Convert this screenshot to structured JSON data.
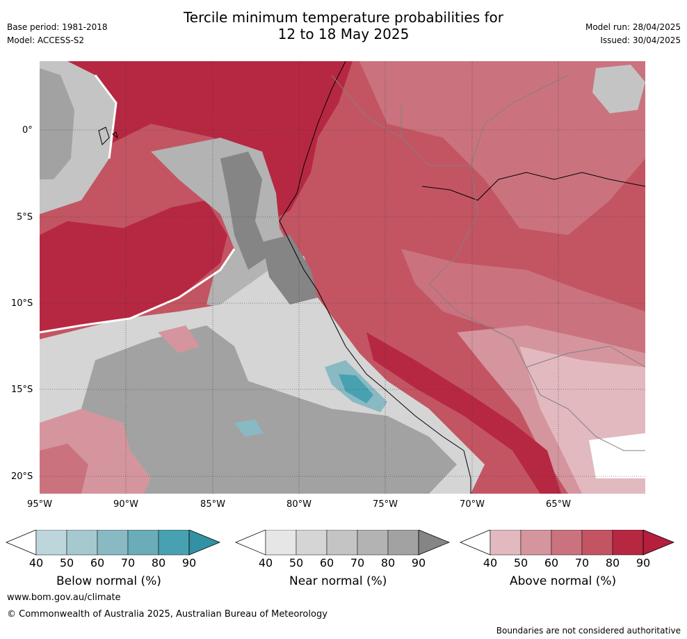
{
  "header": {
    "title_line1": "Tercile minimum temperature probabilities for",
    "title_line2": "12 to 18 May 2025",
    "base_period": "Base period: 1981-2018",
    "model": "Model: ACCESS-S2",
    "model_run": "Model run: 28/04/2025",
    "issued": "Issued: 30/04/2025"
  },
  "axes": {
    "lat_labels": [
      "0°",
      "5°S",
      "10°S",
      "15°S",
      "20°S"
    ],
    "lon_labels": [
      "95°W",
      "90°W",
      "85°W",
      "80°W",
      "75°W",
      "70°W",
      "65°W"
    ],
    "lon_range": [
      -95,
      -60
    ],
    "lat_range": [
      -21,
      4
    ]
  },
  "legends": [
    {
      "title": "Below normal (%)",
      "ticks": [
        "40",
        "50",
        "60",
        "70",
        "80",
        "90"
      ],
      "colors": [
        "#ffffff",
        "#bdd6dc",
        "#a6c8cf",
        "#89b9c3",
        "#6aacb8",
        "#48a1b1",
        "#3391a4"
      ]
    },
    {
      "title": "Near normal (%)",
      "ticks": [
        "40",
        "50",
        "60",
        "70",
        "80",
        "90"
      ],
      "colors": [
        "#ffffff",
        "#e6e6e6",
        "#d5d5d5",
        "#c4c4c4",
        "#b3b3b3",
        "#a2a2a2",
        "#858585"
      ]
    },
    {
      "title": "Above normal (%)",
      "ticks": [
        "40",
        "50",
        "60",
        "70",
        "80",
        "90"
      ],
      "colors": [
        "#ffffff",
        "#e2b9bf",
        "#d5959e",
        "#ca737f",
        "#c35563",
        "#b62842",
        "#b51e3c"
      ]
    }
  ],
  "footer": {
    "url": "www.bom.gov.au/climate",
    "copyright": "© Commonwealth of Australia 2025, Australian Bureau of Meteorology",
    "disclaimer": "Boundaries are not considered authoritative"
  }
}
